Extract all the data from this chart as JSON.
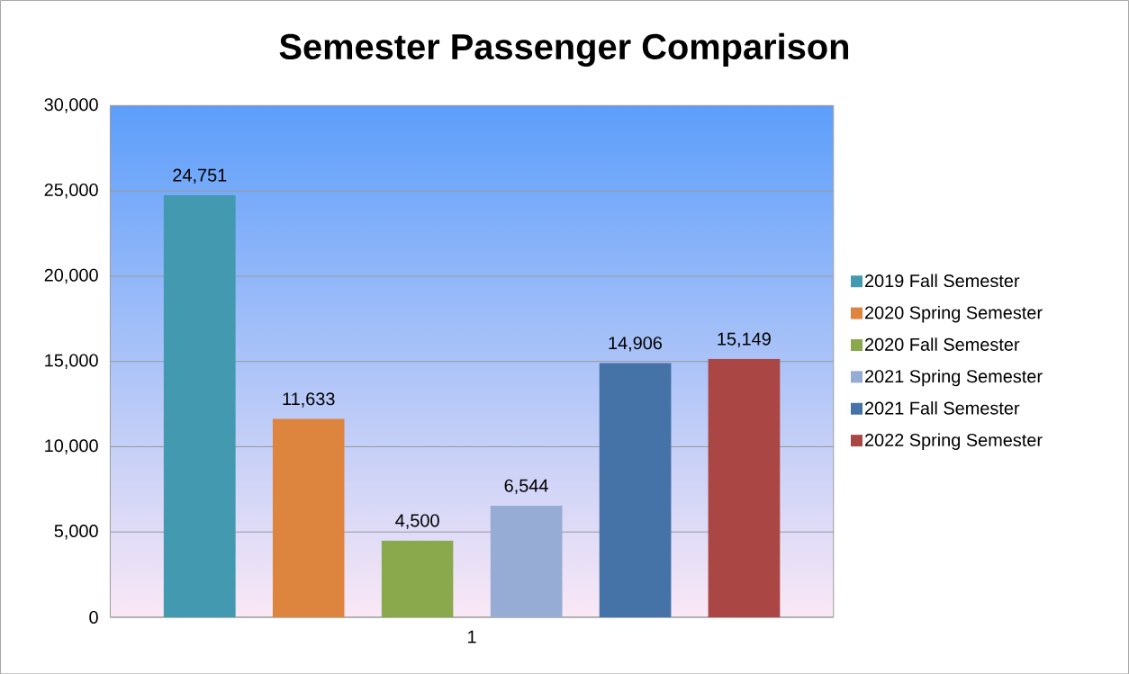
{
  "chart_data": {
    "type": "bar",
    "title": "Semester  Passenger Comparison",
    "categories": [
      "1"
    ],
    "series": [
      {
        "name": "2019 Fall Semester",
        "color": "#4399b0",
        "values": [
          24751
        ],
        "value_labels": [
          "24,751"
        ]
      },
      {
        "name": "2020 Spring Semester",
        "color": "#dd843f",
        "values": [
          11633
        ],
        "value_labels": [
          "11,633"
        ]
      },
      {
        "name": "2020 Fall Semester",
        "color": "#8aa84c",
        "values": [
          4500
        ],
        "value_labels": [
          "4,500"
        ]
      },
      {
        "name": "2021 Spring Semester",
        "color": "#96acd4",
        "values": [
          6544
        ],
        "value_labels": [
          "6,544"
        ]
      },
      {
        "name": "2021 Fall Semester",
        "color": "#4572a7",
        "values": [
          14906
        ],
        "value_labels": [
          "14,906"
        ]
      },
      {
        "name": "2022 Spring Semester",
        "color": "#aa4644",
        "values": [
          15149
        ],
        "value_labels": [
          "15,149"
        ]
      }
    ],
    "ylim": [
      0,
      30000
    ],
    "yticks": [
      {
        "value": 0,
        "label": "0"
      },
      {
        "value": 5000,
        "label": "5,000"
      },
      {
        "value": 10000,
        "label": "10,000"
      },
      {
        "value": 15000,
        "label": "15,000"
      },
      {
        "value": 20000,
        "label": "20,000"
      },
      {
        "value": 25000,
        "label": "25,000"
      },
      {
        "value": 30000,
        "label": "30,000"
      }
    ],
    "grid": "y",
    "legend": "right"
  }
}
